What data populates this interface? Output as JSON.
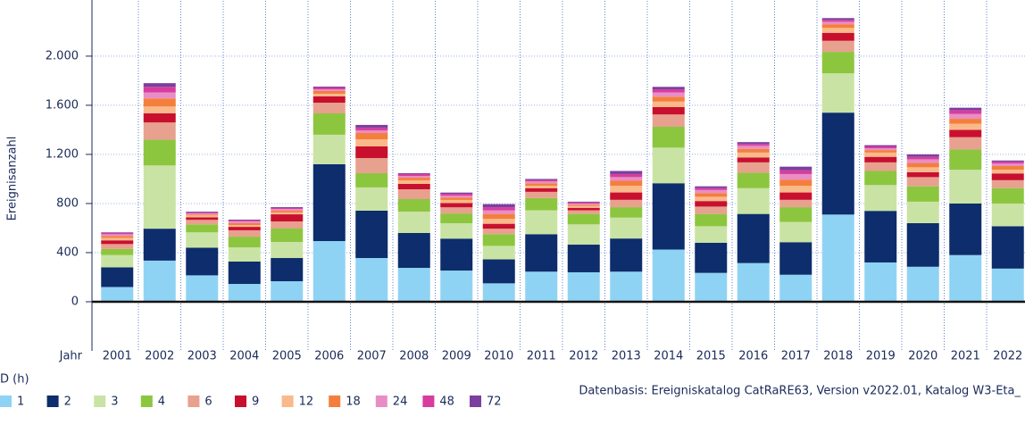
{
  "chart_data": {
    "type": "stacked-bar",
    "y_label": "Ereignisanzahl",
    "x_label": "Jahr",
    "source": "Datenbasis: Ereigniskatalog CatRaRE63, Version v2022.01, Katalog W3-Eta_",
    "legend_title": "D (h)",
    "categories": [
      "2001",
      "2002",
      "2003",
      "2004",
      "2005",
      "2006",
      "2007",
      "2008",
      "2009",
      "2010",
      "2011",
      "2012",
      "2013",
      "2014",
      "2015",
      "2016",
      "2017",
      "2018",
      "2019",
      "2020",
      "2021",
      "2022"
    ],
    "series": [
      {
        "name": "1",
        "color": "#8fd3f4",
        "values": [
          120,
          335,
          215,
          145,
          167,
          494,
          356,
          276,
          254,
          150,
          245,
          240,
          245,
          425,
          235,
          315,
          220,
          710,
          320,
          285,
          380,
          270
        ]
      },
      {
        "name": "2",
        "color": "#0d2d6c",
        "values": [
          160,
          260,
          225,
          182,
          189,
          626,
          386,
          284,
          260,
          195,
          305,
          225,
          270,
          540,
          245,
          400,
          265,
          830,
          420,
          355,
          420,
          345
        ]
      },
      {
        "name": "3",
        "color": "#c9e3a4",
        "values": [
          100,
          515,
          125,
          116,
          131,
          240,
          189,
          174,
          125,
          110,
          195,
          165,
          170,
          290,
          135,
          210,
          165,
          320,
          210,
          175,
          275,
          185
        ]
      },
      {
        "name": "4",
        "color": "#8cc63f",
        "values": [
          50,
          210,
          65,
          87,
          109,
          174,
          116,
          102,
          80,
          95,
          100,
          85,
          85,
          170,
          100,
          125,
          120,
          175,
          115,
          125,
          165,
          125
        ]
      },
      {
        "name": "6",
        "color": "#e8a08f",
        "values": [
          40,
          140,
          37,
          52,
          58,
          87,
          123,
          80,
          50,
          45,
          50,
          30,
          60,
          100,
          60,
          85,
          60,
          90,
          70,
          75,
          100,
          65
        ]
      },
      {
        "name": "9",
        "color": "#c8102e",
        "values": [
          30,
          75,
          21,
          28,
          58,
          51,
          95,
          44,
          35,
          40,
          30,
          20,
          60,
          60,
          45,
          40,
          60,
          65,
          45,
          40,
          60,
          55
        ]
      },
      {
        "name": "12",
        "color": "#f9b98a",
        "values": [
          20,
          55,
          15,
          15,
          15,
          22,
          58,
          29,
          25,
          40,
          20,
          15,
          55,
          45,
          35,
          40,
          55,
          40,
          35,
          40,
          50,
          30
        ]
      },
      {
        "name": "18",
        "color": "#f47f3c",
        "values": [
          15,
          65,
          8,
          15,
          14,
          22,
          51,
          21,
          20,
          40,
          20,
          10,
          40,
          40,
          30,
          30,
          50,
          30,
          20,
          35,
          40,
          30
        ]
      },
      {
        "name": "24",
        "color": "#e98dc6",
        "values": [
          15,
          50,
          8,
          15,
          15,
          14,
          22,
          15,
          15,
          30,
          15,
          10,
          30,
          35,
          25,
          25,
          45,
          20,
          15,
          30,
          40,
          20
        ]
      },
      {
        "name": "48",
        "color": "#d63d9e",
        "values": [
          10,
          45,
          7,
          7,
          7,
          15,
          22,
          15,
          15,
          25,
          10,
          8,
          25,
          25,
          15,
          15,
          30,
          15,
          15,
          20,
          30,
          15
        ]
      },
      {
        "name": "72",
        "color": "#7b3f9e",
        "values": [
          5,
          30,
          7,
          7,
          7,
          7,
          22,
          7,
          10,
          25,
          10,
          7,
          25,
          20,
          15,
          15,
          30,
          15,
          10,
          20,
          20,
          10
        ]
      }
    ],
    "ylim": [
      -400,
      2450
    ],
    "yticks": [
      0,
      400,
      800,
      {
        "value": 1200,
        "label": "1.200"
      },
      {
        "value": 1600,
        "label": "1.600"
      },
      {
        "value": 2000,
        "label": "2.000"
      }
    ],
    "grid": true
  }
}
